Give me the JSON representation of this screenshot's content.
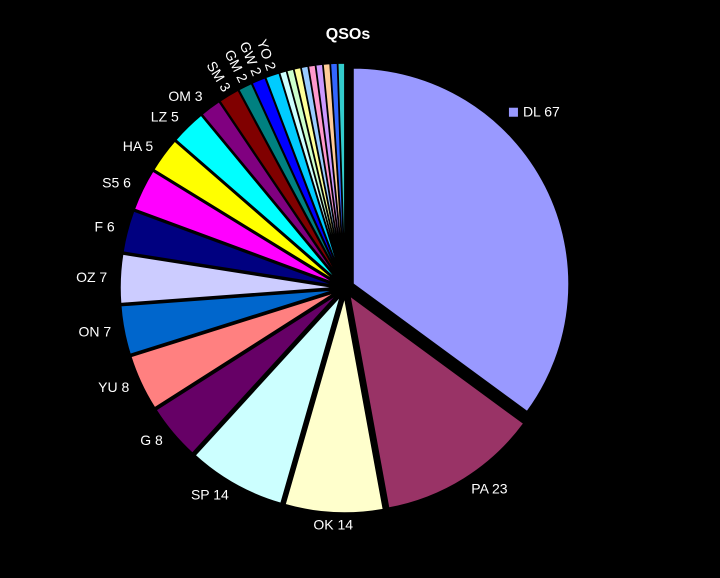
{
  "chart_data": {
    "type": "pie",
    "title": "QSOs",
    "values": [
      67,
      23,
      14,
      14,
      8,
      8,
      7,
      7,
      6,
      6,
      5,
      5,
      3,
      3,
      2,
      2,
      2,
      1,
      1,
      1,
      1,
      1,
      1,
      1,
      1,
      1
    ],
    "value_labels": [
      "DL 67",
      "PA 23",
      "OK  14",
      "SP  14",
      "G  8",
      "YU  8",
      "ON  7",
      "OZ  7",
      "F   6",
      "S5   6",
      "HA  5",
      "LZ   5",
      "OM  3",
      "SM  3",
      "GM  2",
      "GW  2",
      "YO  2",
      null,
      null,
      null,
      null,
      null,
      null,
      null,
      null,
      null
    ],
    "colors": [
      "#9999ff",
      "#993366",
      "#ffffcc",
      "#ccffff",
      "#660066",
      "#ff8080",
      "#0066cc",
      "#ccccff",
      "#000080",
      "#ff00ff",
      "#ffff00",
      "#00ffff",
      "#800080",
      "#800000",
      "#008080",
      "#0000ff",
      "#00ccff",
      "#ccffff",
      "#ccffcc",
      "#ffff99",
      "#99ccff",
      "#ff99cc",
      "#cc99ff",
      "#ffcc99",
      "#3366ff",
      "#33cccc"
    ],
    "legend_marker_first": true
  }
}
